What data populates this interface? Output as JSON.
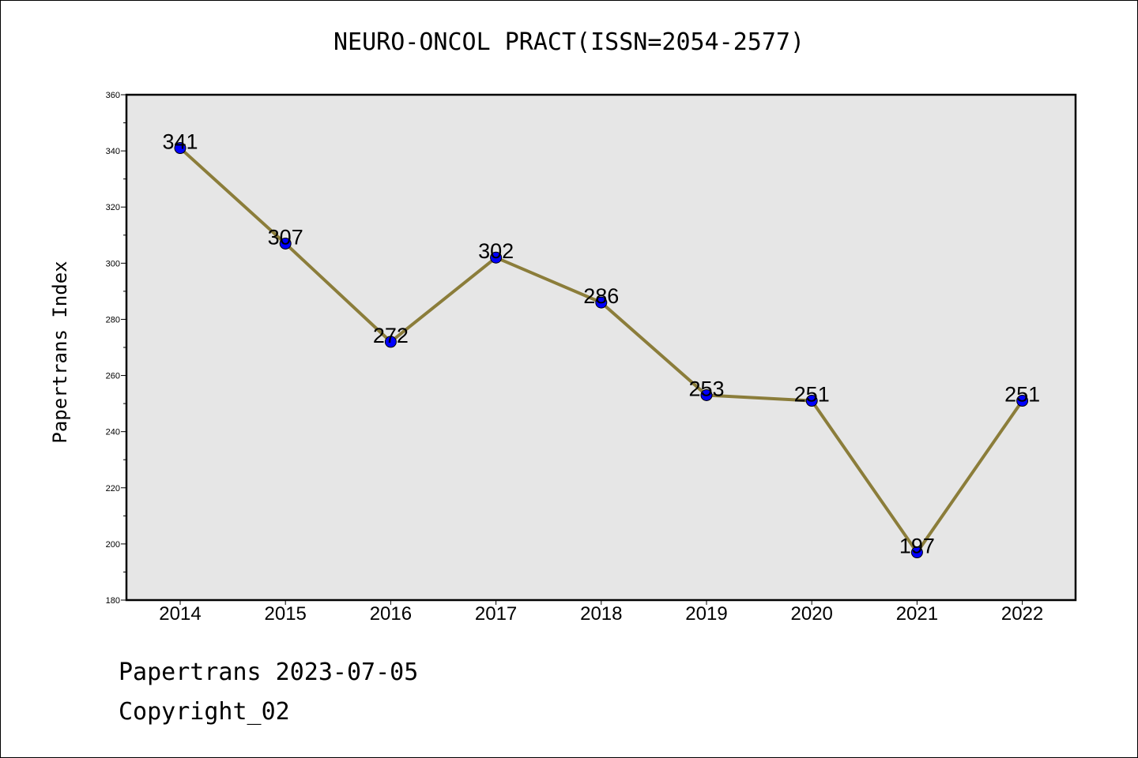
{
  "chart_data": {
    "type": "line",
    "title": "NEURO-ONCOL PRACT(ISSN=2054-2577)",
    "xlabel": "",
    "ylabel": "Papertrans Index",
    "categories": [
      "2014",
      "2015",
      "2016",
      "2017",
      "2018",
      "2019",
      "2020",
      "2021",
      "2022"
    ],
    "values": [
      341,
      307,
      272,
      302,
      286,
      253,
      251,
      197,
      251
    ],
    "data_labels": [
      "341",
      "307",
      "272",
      "302",
      "286",
      "253",
      "251",
      "197",
      "251"
    ],
    "ylim": [
      180,
      360
    ],
    "yticks": [
      "180",
      "200",
      "220",
      "240",
      "260",
      "280",
      "300",
      "320",
      "340",
      "360"
    ],
    "grid": false,
    "colors": {
      "line": "#8b7d3a",
      "marker": "#0000ff",
      "plot_background": "#e6e6e6"
    }
  },
  "footer": {
    "line1": "Papertrans 2023-07-05",
    "line2": "Copyright_02"
  }
}
